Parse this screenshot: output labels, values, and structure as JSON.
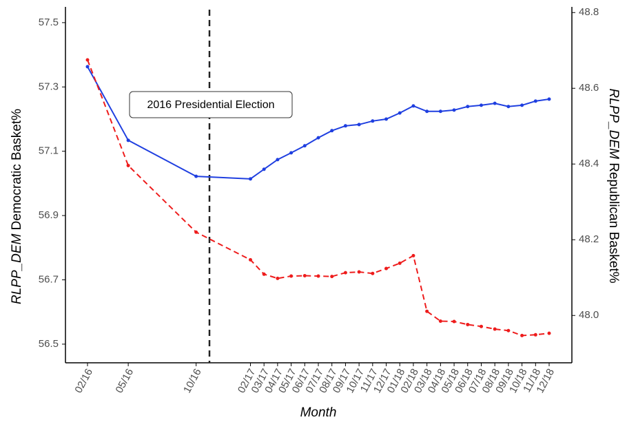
{
  "chart_data": {
    "type": "line",
    "x": [
      "02/16",
      "05/16",
      "10/16",
      "02/17",
      "03/17",
      "04/17",
      "05/17",
      "06/17",
      "07/17",
      "08/17",
      "09/17",
      "10/17",
      "11/17",
      "12/17",
      "01/18",
      "02/18",
      "03/18",
      "04/18",
      "05/18",
      "06/18",
      "07/18",
      "08/18",
      "09/18",
      "10/18",
      "11/18",
      "12/18"
    ],
    "xlabel": "Month",
    "ylabel": {
      "italic": "RLPP_DEM",
      "text": "Democratic Basket%"
    },
    "y2label": {
      "italic": "RLPP_DEM",
      "text": "Republican Basket%"
    },
    "annotation": "2016 Presidential Election",
    "ylim": [
      56.442,
      57.549
    ],
    "yticks": [
      {
        "value": 56.5,
        "label": "56.5"
      },
      {
        "value": 56.7,
        "label": "56.7"
      },
      {
        "value": 56.9,
        "label": "56.9"
      },
      {
        "value": 57.1,
        "label": "57.1"
      },
      {
        "value": 57.3,
        "label": "57.3"
      },
      {
        "value": 57.5,
        "label": "57.5"
      }
    ],
    "y2lim": [
      47.875,
      48.815
    ],
    "y2ticks": [
      {
        "value": 48.0,
        "label": "48.0"
      },
      {
        "value": 48.2,
        "label": "48.2"
      },
      {
        "value": 48.4,
        "label": "48.4"
      },
      {
        "value": 48.6,
        "label": "48.6"
      },
      {
        "value": 48.8,
        "label": "48.8"
      }
    ],
    "series": [
      {
        "color": "#1f3fe0",
        "dash": false,
        "values": [
          57.363,
          57.134,
          57.022,
          57.014,
          57.044,
          57.074,
          57.095,
          57.117,
          57.142,
          57.164,
          57.179,
          57.183,
          57.194,
          57.2,
          57.219,
          57.241,
          57.224,
          57.224,
          57.228,
          57.239,
          57.243,
          57.249,
          57.239,
          57.243,
          57.256,
          57.262
        ]
      },
      {
        "color": "#ee1c1c",
        "dash": true,
        "axis": "y2",
        "values": [
          48.675,
          48.396,
          48.22,
          48.147,
          48.109,
          48.098,
          48.104,
          48.105,
          48.104,
          48.103,
          48.113,
          48.115,
          48.111,
          48.124,
          48.138,
          48.158,
          48.011,
          47.985,
          47.984,
          47.976,
          47.971,
          47.964,
          47.96,
          47.947,
          47.949,
          47.953
        ]
      }
    ]
  }
}
